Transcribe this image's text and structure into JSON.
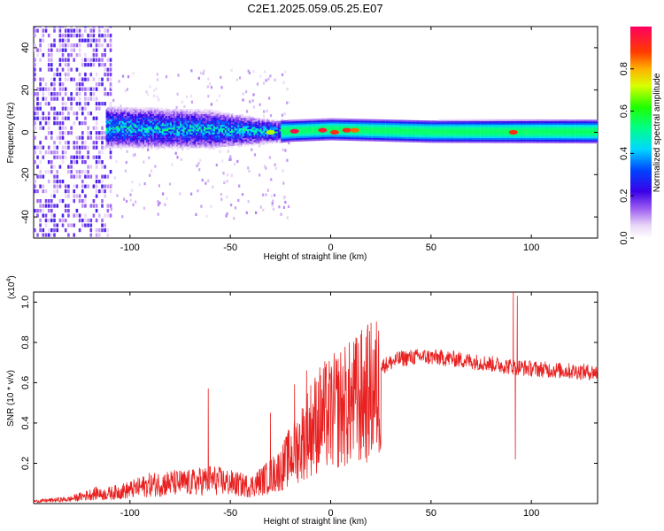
{
  "title": "C2E1.2025.059.05.25.E07",
  "chart_data": [
    {
      "type": "heatmap",
      "title": "C2E1.2025.059.05.25.E07",
      "xlabel": "Height of straight line (km)",
      "ylabel": "Frequency (Hz)",
      "xlim": [
        -148,
        133
      ],
      "ylim": [
        -50,
        50
      ],
      "x_ticks": [
        -100,
        -50,
        0,
        50,
        100
      ],
      "y_ticks": [
        -40,
        -20,
        0,
        20,
        40
      ],
      "colorbar": {
        "label": "Normalized spectral amplitude",
        "ticks": [
          0.0,
          0.2,
          0.4,
          0.6,
          0.8
        ],
        "range": [
          0,
          1
        ]
      },
      "band_center": [
        {
          "x": -112,
          "y": 2
        },
        {
          "x": -60,
          "y": 1
        },
        {
          "x": -28,
          "y": 0
        },
        {
          "x": 0,
          "y": 1
        },
        {
          "x": 50,
          "y": 0
        },
        {
          "x": 130,
          "y": 0
        }
      ],
      "band_halfwidth": [
        {
          "x": -112,
          "y": 8
        },
        {
          "x": -60,
          "y": 7
        },
        {
          "x": -28,
          "y": 3
        },
        {
          "x": -20,
          "y": 2.5
        },
        {
          "x": 0,
          "y": 2.5
        },
        {
          "x": 130,
          "y": 3
        }
      ],
      "noise_region_x": [
        -148,
        -110
      ],
      "hot_spots": [
        {
          "x": -18,
          "y": 0.5,
          "v": 0.98
        },
        {
          "x": -4,
          "y": 1,
          "v": 0.95
        },
        {
          "x": 2,
          "y": 0,
          "v": 0.9
        },
        {
          "x": 8,
          "y": 1,
          "v": 0.92
        },
        {
          "x": 12,
          "y": 1,
          "v": 0.85
        },
        {
          "x": 91,
          "y": 0,
          "v": 0.9
        },
        {
          "x": -30,
          "y": 0,
          "v": 0.7
        }
      ]
    },
    {
      "type": "line",
      "xlabel": "Height of straight line (km)",
      "ylabel": "SNR (10 * v/v)",
      "y_multiplier": "(x10",
      "y_multiplier_exp": "4",
      "y_multiplier_close": ")",
      "xlim": [
        -148,
        133
      ],
      "ylim": [
        0,
        1.05
      ],
      "x_ticks": [
        -100,
        -50,
        0,
        50,
        100
      ],
      "y_ticks": [
        0.2,
        0.4,
        0.6,
        0.8,
        1.0
      ],
      "series_color": "#e82020",
      "envelope": [
        {
          "x": -148,
          "y": 0.01
        },
        {
          "x": -130,
          "y": 0.02
        },
        {
          "x": -120,
          "y": 0.04
        },
        {
          "x": -110,
          "y": 0.06
        },
        {
          "x": -100,
          "y": 0.08
        },
        {
          "x": -90,
          "y": 0.11
        },
        {
          "x": -80,
          "y": 0.12
        },
        {
          "x": -70,
          "y": 0.12
        },
        {
          "x": -60,
          "y": 0.14
        },
        {
          "x": -50,
          "y": 0.12
        },
        {
          "x": -40,
          "y": 0.1
        },
        {
          "x": -30,
          "y": 0.16
        },
        {
          "x": -25,
          "y": 0.2
        },
        {
          "x": -20,
          "y": 0.28
        },
        {
          "x": -15,
          "y": 0.35
        },
        {
          "x": -10,
          "y": 0.44
        },
        {
          "x": -5,
          "y": 0.5
        },
        {
          "x": 0,
          "y": 0.52
        },
        {
          "x": 5,
          "y": 0.56
        },
        {
          "x": 10,
          "y": 0.58
        },
        {
          "x": 15,
          "y": 0.62
        },
        {
          "x": 20,
          "y": 0.65
        },
        {
          "x": 25,
          "y": 0.68
        },
        {
          "x": 35,
          "y": 0.72
        },
        {
          "x": 45,
          "y": 0.73
        },
        {
          "x": 60,
          "y": 0.72
        },
        {
          "x": 75,
          "y": 0.7
        },
        {
          "x": 90,
          "y": 0.68
        },
        {
          "x": 100,
          "y": 0.67
        },
        {
          "x": 115,
          "y": 0.66
        },
        {
          "x": 133,
          "y": 0.65
        }
      ],
      "spikes": [
        {
          "x": -61,
          "y": 0.57
        },
        {
          "x": -30,
          "y": 0.45
        },
        {
          "x": -18,
          "y": 0.59
        },
        {
          "x": -12,
          "y": 0.66
        },
        {
          "x": 0,
          "y": 0.35
        },
        {
          "x": 13,
          "y": 0.82
        },
        {
          "x": 15,
          "y": 0.22
        },
        {
          "x": 91,
          "y": 1.05
        },
        {
          "x": 92,
          "y": 0.22
        },
        {
          "x": 93,
          "y": 1.03
        }
      ]
    }
  ]
}
